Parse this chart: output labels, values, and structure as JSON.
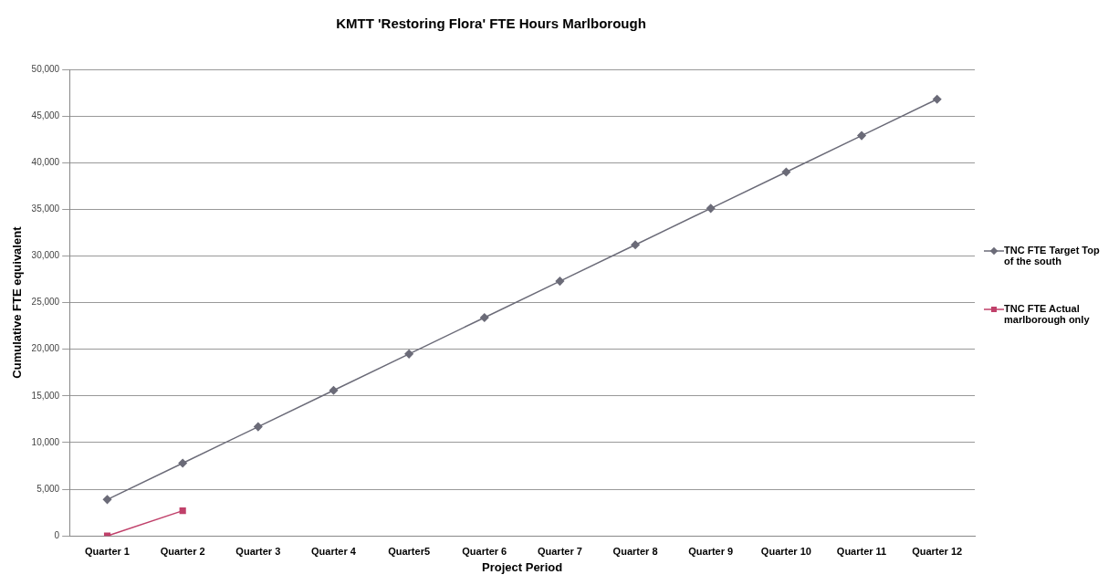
{
  "chart_data": {
    "type": "line",
    "title": "KMTT 'Restoring Flora' FTE Hours Marlborough",
    "xlabel": "Project Period",
    "ylabel": "Cumulative FTE equivalent",
    "categories": [
      "Quarter 1",
      "Quarter 2",
      "Quarter 3",
      "Quarter 4",
      "Quarter5",
      "Quarter 6",
      "Quarter 7",
      "Quarter 8",
      "Quarter 9",
      "Quarter 10",
      "Quarter 11",
      "Quarter 12"
    ],
    "series": [
      {
        "name": "TNC FTE Target Top of the south",
        "color": "#6b6b78",
        "marker": "diamond",
        "values": [
          3900,
          7800,
          11700,
          15600,
          19500,
          23400,
          27300,
          31200,
          35100,
          39000,
          42900,
          46800
        ]
      },
      {
        "name": "TNC FTE Actual marlborough only",
        "color": "#c0406a",
        "marker": "square",
        "values": [
          0,
          2700,
          null,
          null,
          null,
          null,
          null,
          null,
          null,
          null,
          null,
          null
        ]
      }
    ],
    "ylim": [
      0,
      50000
    ],
    "yticks": [
      {
        "value": 0,
        "label": "0"
      },
      {
        "value": 5000,
        "label": "5,000"
      },
      {
        "value": 10000,
        "label": "10,000"
      },
      {
        "value": 15000,
        "label": "15,000"
      },
      {
        "value": 20000,
        "label": "20,000"
      },
      {
        "value": 25000,
        "label": "25,000"
      },
      {
        "value": 30000,
        "label": "30,000"
      },
      {
        "value": 35000,
        "label": "35,000"
      },
      {
        "value": 40000,
        "label": "40,000"
      },
      {
        "value": 45000,
        "label": "45,000"
      },
      {
        "value": 50000,
        "label": "50,000"
      }
    ],
    "grid": "y",
    "legend": "right",
    "line_style": "solid"
  }
}
